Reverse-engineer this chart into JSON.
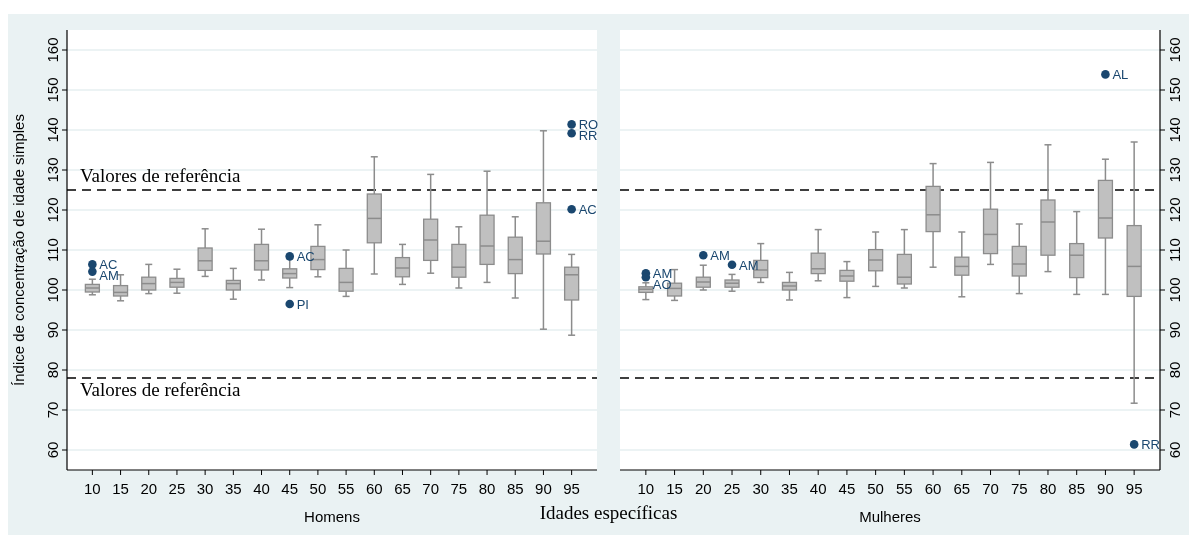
{
  "chart_data": [
    {
      "type": "box",
      "xlabel": "Homens",
      "ylabel": "Índice de concentração de idade simples",
      "categories": [
        "10",
        "15",
        "20",
        "25",
        "30",
        "35",
        "40",
        "45",
        "50",
        "55",
        "60",
        "65",
        "70",
        "75",
        "80",
        "85",
        "90",
        "95"
      ],
      "ylim": [
        55,
        165
      ],
      "yticks": [
        60,
        70,
        80,
        90,
        100,
        110,
        120,
        130,
        140,
        150,
        160
      ],
      "grid": "y",
      "color": "#c0c0c0",
      "boxes": [
        {
          "low": 98.8,
          "q1": 99.5,
          "median": 100.5,
          "q3": 101.4,
          "high": 102.7
        },
        {
          "low": 97.3,
          "q1": 98.5,
          "median": 99.4,
          "q3": 101.1,
          "high": 103.8
        },
        {
          "low": 99.1,
          "q1": 100,
          "median": 101.6,
          "q3": 103.2,
          "high": 106.4
        },
        {
          "low": 99.2,
          "q1": 100.7,
          "median": 101.9,
          "q3": 102.9,
          "high": 105.2
        },
        {
          "low": 103.4,
          "q1": 104.9,
          "median": 107.3,
          "q3": 110.5,
          "high": 115.3
        },
        {
          "low": 97.7,
          "q1": 100,
          "median": 101.6,
          "q3": 102.4,
          "high": 105.4
        },
        {
          "low": 102.5,
          "q1": 105,
          "median": 107.3,
          "q3": 111.4,
          "high": 115.2
        },
        {
          "low": 100.6,
          "q1": 103,
          "median": 104.1,
          "q3": 105.3,
          "high": 107.8
        },
        {
          "low": 103.3,
          "q1": 105.1,
          "median": 107.6,
          "q3": 110.9,
          "high": 116.3
        },
        {
          "low": 98.4,
          "q1": 99.7,
          "median": 101.9,
          "q3": 105.4,
          "high": 110
        },
        {
          "low": 104,
          "q1": 111.8,
          "median": 117.9,
          "q3": 124,
          "high": 133.3
        },
        {
          "low": 101.4,
          "q1": 103.3,
          "median": 105.5,
          "q3": 108.1,
          "high": 111.4
        },
        {
          "low": 104.2,
          "q1": 107.4,
          "median": 112.5,
          "q3": 117.7,
          "high": 128.9
        },
        {
          "low": 100.5,
          "q1": 103.2,
          "median": 105.7,
          "q3": 111.4,
          "high": 115.8
        },
        {
          "low": 101.9,
          "q1": 106.4,
          "median": 111,
          "q3": 118.7,
          "high": 129.7
        },
        {
          "low": 98,
          "q1": 104.1,
          "median": 107.6,
          "q3": 113.2,
          "high": 118.3
        },
        {
          "low": 90.2,
          "q1": 109,
          "median": 112.2,
          "q3": 121.8,
          "high": 139.8
        },
        {
          "low": 88.7,
          "q1": 97.5,
          "median": 103.8,
          "q3": 105.7,
          "high": 108.9
        }
      ],
      "series": [
        {
          "type": "scatter",
          "color": "#1a476f",
          "x": [
            "10",
            "10",
            "45",
            "45",
            "95",
            "95",
            "95"
          ],
          "values": [
            106.4,
            104.6,
            108.4,
            96.5,
            141.4,
            139.2,
            120.2
          ]
        }
      ],
      "marker": "circle",
      "ref_lines": [
        {
          "axis": "y",
          "value": 125,
          "label": "Valores de referência",
          "line_style": "dashed",
          "color": "#000000"
        },
        {
          "axis": "y",
          "value": 78,
          "label": "Valores de referência",
          "line_style": "dashed",
          "color": "#000000"
        }
      ],
      "annotations": [
        {
          "text": "AC",
          "x": "10",
          "y": 106.4
        },
        {
          "text": "AM",
          "x": "10",
          "y": 104.6
        },
        {
          "text": "AC",
          "x": "45",
          "y": 108.4
        },
        {
          "text": "PI",
          "x": "45",
          "y": 96.5
        },
        {
          "text": "RO",
          "x": "95",
          "y": 141.4
        },
        {
          "text": "RR",
          "x": "95",
          "y": 139.2
        },
        {
          "text": "AC",
          "x": "95",
          "y": 120.2
        },
        "Idades específicas"
      ]
    },
    {
      "type": "box",
      "xlabel": "Mulheres",
      "categories": [
        "10",
        "15",
        "20",
        "25",
        "30",
        "35",
        "40",
        "45",
        "50",
        "55",
        "60",
        "65",
        "70",
        "75",
        "80",
        "85",
        "90",
        "95"
      ],
      "ylim": [
        55,
        165
      ],
      "yticks": [
        60,
        70,
        80,
        90,
        100,
        110,
        120,
        130,
        140,
        150,
        160
      ],
      "grid": "y",
      "color": "#c0c0c0",
      "boxes": [
        {
          "low": 97.6,
          "q1": 99.4,
          "median": 100.2,
          "q3": 100.8,
          "high": 101.8
        },
        {
          "low": 97.4,
          "q1": 98.5,
          "median": 100.4,
          "q3": 101.7,
          "high": 105.1
        },
        {
          "low": 100,
          "q1": 100.7,
          "median": 102,
          "q3": 103.2,
          "high": 106.2
        },
        {
          "low": 99.7,
          "q1": 100.7,
          "median": 101.7,
          "q3": 102.5,
          "high": 103.9
        },
        {
          "low": 101.9,
          "q1": 103.1,
          "median": 105,
          "q3": 107.4,
          "high": 111.6
        },
        {
          "low": 97.5,
          "q1": 100,
          "median": 101,
          "q3": 101.9,
          "high": 104.4
        },
        {
          "low": 102.3,
          "q1": 104.1,
          "median": 105.3,
          "q3": 109.2,
          "high": 115.1
        },
        {
          "low": 98.1,
          "q1": 102.2,
          "median": 103.5,
          "q3": 104.9,
          "high": 107.1
        },
        {
          "low": 100.9,
          "q1": 104.8,
          "median": 107.5,
          "q3": 110.1,
          "high": 114.5
        },
        {
          "low": 100.5,
          "q1": 101.5,
          "median": 103.2,
          "q3": 108.9,
          "high": 115.1
        },
        {
          "low": 105.7,
          "q1": 114.6,
          "median": 118.8,
          "q3": 125.9,
          "high": 131.6
        },
        {
          "low": 98.3,
          "q1": 103.7,
          "median": 105.9,
          "q3": 108.2,
          "high": 114.5
        },
        {
          "low": 106.4,
          "q1": 109.1,
          "median": 113.9,
          "q3": 120.2,
          "high": 131.9
        },
        {
          "low": 99.1,
          "q1": 103.5,
          "median": 106.5,
          "q3": 110.9,
          "high": 116.5
        },
        {
          "low": 104.6,
          "q1": 108.7,
          "median": 117,
          "q3": 122.5,
          "high": 136.3
        },
        {
          "low": 98.9,
          "q1": 103.1,
          "median": 108.7,
          "q3": 111.6,
          "high": 119.6
        },
        {
          "low": 98.9,
          "q1": 113,
          "median": 118,
          "q3": 127.4,
          "high": 132.7
        },
        {
          "low": 71.7,
          "q1": 98.4,
          "median": 105.9,
          "q3": 116.1,
          "high": 137
        }
      ],
      "series": [
        {
          "type": "scatter",
          "color": "#1a476f",
          "x": [
            "10",
            "10",
            "20",
            "25",
            "90",
            "95"
          ],
          "values": [
            104.2,
            103.2,
            108.7,
            106.3,
            153.9,
            61.4
          ]
        }
      ],
      "marker": "circle",
      "ref_lines": [
        {
          "axis": "y",
          "value": 125,
          "line_style": "dashed",
          "color": "#000000"
        },
        {
          "axis": "y",
          "value": 78,
          "line_style": "dashed",
          "color": "#000000"
        }
      ],
      "annotations": [
        {
          "text": "AM",
          "x": "10",
          "y": 104.2
        },
        {
          "text": "AO",
          "x": "10",
          "y": 103.2
        },
        {
          "text": "AM",
          "x": "20",
          "y": 108.7
        },
        {
          "text": "AM",
          "x": "25",
          "y": 106.3
        },
        {
          "text": "AL",
          "x": "90",
          "y": 153.9
        },
        {
          "text": "RR",
          "x": "95",
          "y": 61.4
        }
      ]
    }
  ]
}
